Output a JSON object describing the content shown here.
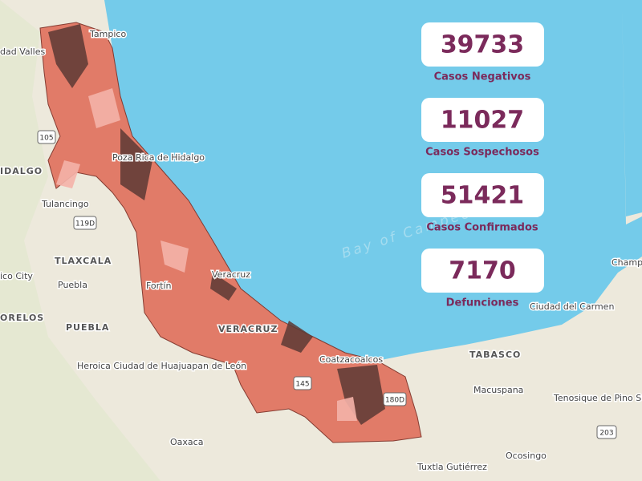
{
  "stats": [
    {
      "value": 39733,
      "label": "Casos Negativos"
    },
    {
      "value": 11027,
      "label": "Casos Sospechosos"
    },
    {
      "value": 51421,
      "label": "Casos Confirmados"
    },
    {
      "value": 7170,
      "label": "Defunciones"
    }
  ],
  "map": {
    "labels": [
      "Tampico",
      "dad Valles",
      "IDALGO",
      "Tulancingo",
      "TLAXCALA",
      "ico City",
      "Puebla",
      "PUEBLA",
      "ORELOS",
      "Heroica Ciudad de Huajuapan de León",
      "Oaxaca",
      "Veracruz",
      "VERACRUZ",
      "Coatzacoalcos",
      "Bay of Campeche",
      "TABASCO",
      "Macuspana",
      "Ciudad del Carmen",
      "Champ",
      "Tenosique de Pino Suárez",
      "Ocosingo",
      "Tuxtla Gutiérrez",
      "Poza Rica de Hidalgo",
      "Fortín"
    ],
    "shields": [
      "105",
      "119D",
      "145",
      "180D",
      "203"
    ]
  }
}
